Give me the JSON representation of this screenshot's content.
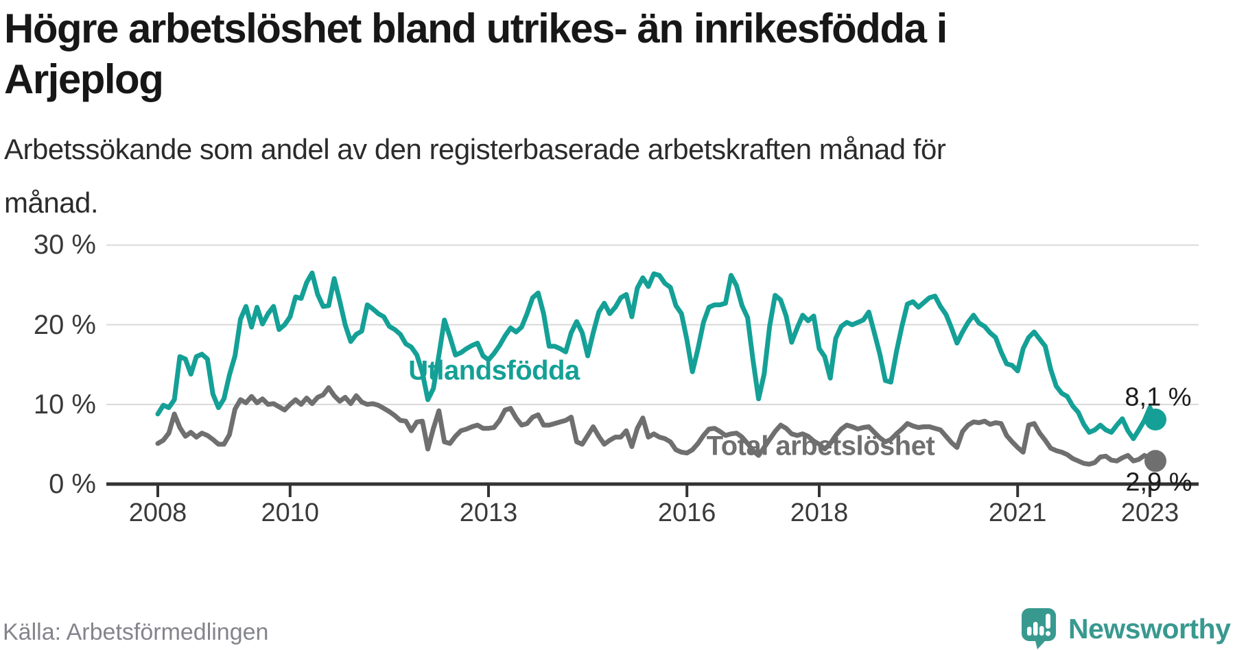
{
  "header": {
    "title": "Högre arbetslöshet bland utrikes- än inrikesfödda i Arjeplog",
    "title_lines": [
      "Högre arbetslöshet bland utrikes- än inrikesfödda i",
      "Arjeplog"
    ],
    "subtitle": "Arbetssökande som andel av den registerbaserade arbetskraften månad för månad.",
    "subtitle_lines": [
      "Arbetssökande som andel av den registerbaserade arbetskraften månad för",
      "månad."
    ]
  },
  "footer": {
    "source": "Källa: Arbetsförmedlingen",
    "brand_name": "Newsworthy",
    "brand_color": "#38998f"
  },
  "colors": {
    "teal_series": "#14a096",
    "gray_series": "#6f6f6f",
    "gridline": "#d9d9d9",
    "axis": "#333333",
    "tick_text": "#3a3a3a"
  },
  "chart_data": {
    "type": "line",
    "title": "Högre arbetslöshet bland utrikes- än inrikesfödda i Arjeplog",
    "subtitle": "Arbetssökande som andel av den registerbaserade arbetskraften månad för månad.",
    "xlabel": "",
    "ylabel": "",
    "ylim": [
      0,
      30
    ],
    "grid": "horizontal",
    "frequency": "monthly",
    "start": "2008-01",
    "end": "2023-02",
    "y_ticks": [
      {
        "label": "30 %",
        "value": 30
      },
      {
        "label": "20 %",
        "value": 20
      },
      {
        "label": "10 %",
        "value": 10
      },
      {
        "label": "0 %",
        "value": 0
      }
    ],
    "x_ticks": [
      {
        "label": "2008",
        "year": 2008
      },
      {
        "label": "2010",
        "year": 2010
      },
      {
        "label": "2013",
        "year": 2013
      },
      {
        "label": "2016",
        "year": 2016
      },
      {
        "label": "2018",
        "year": 2018
      },
      {
        "label": "2021",
        "year": 2021
      },
      {
        "label": "2023",
        "year": 2023
      }
    ],
    "series": [
      {
        "name": "Utlandsfödda",
        "color": "#14a096",
        "end_label": "8,1 %",
        "end_value": 8.1,
        "values": [
          8.8,
          9.9,
          9.6,
          10.6,
          16.0,
          15.7,
          13.8,
          16.0,
          16.3,
          15.7,
          11.3,
          9.6,
          10.7,
          13.7,
          16.1,
          20.7,
          22.3,
          19.7,
          22.2,
          20.1,
          21.4,
          22.3,
          19.4,
          20.0,
          21.0,
          23.5,
          23.3,
          25.3,
          26.5,
          23.8,
          22.3,
          22.4,
          25.8,
          23.0,
          20.0,
          17.9,
          18.8,
          19.2,
          22.5,
          22.0,
          21.4,
          21.0,
          19.8,
          19.4,
          18.8,
          17.6,
          17.2,
          16.2,
          14.0,
          10.6,
          12.0,
          16.2,
          20.6,
          18.5,
          16.2,
          16.5,
          17.0,
          17.4,
          17.7,
          16.1,
          15.6,
          16.4,
          17.4,
          18.6,
          19.6,
          19.1,
          19.7,
          21.4,
          23.4,
          24.0,
          21.4,
          17.3,
          17.3,
          17.0,
          16.6,
          19.0,
          20.4,
          19.0,
          16.1,
          19.0,
          21.6,
          22.7,
          21.4,
          22.2,
          23.4,
          23.8,
          21.0,
          24.6,
          25.9,
          24.8,
          26.4,
          26.2,
          25.2,
          24.7,
          22.4,
          21.4,
          18.1,
          14.1,
          17.0,
          20.3,
          22.2,
          22.5,
          22.5,
          22.7,
          26.2,
          24.9,
          22.4,
          20.9,
          15.5,
          10.7,
          13.8,
          19.8,
          23.7,
          23.1,
          21.1,
          17.8,
          19.6,
          21.2,
          20.5,
          21.1,
          17.0,
          16.0,
          13.3,
          18.3,
          19.8,
          20.3,
          20.0,
          20.3,
          20.6,
          21.6,
          19.0,
          16.3,
          13.0,
          12.8,
          16.6,
          19.8,
          22.6,
          22.9,
          22.2,
          22.8,
          23.4,
          23.6,
          22.3,
          21.3,
          19.6,
          17.7,
          19.1,
          20.3,
          21.2,
          20.2,
          19.8,
          19.0,
          18.4,
          16.6,
          15.1,
          14.9,
          14.2,
          17.0,
          18.4,
          19.1,
          18.2,
          17.3,
          14.4,
          12.3,
          11.4,
          11.0,
          9.8,
          9.0,
          7.5,
          6.5,
          6.8,
          7.4,
          6.8,
          6.5,
          7.4,
          8.2,
          6.7,
          5.7,
          6.8,
          8.0,
          9.6,
          8.1
        ]
      },
      {
        "name": "Total arbetslöshet",
        "color": "#6f6f6f",
        "end_label": "2,9 %",
        "end_value": 2.9,
        "values": [
          5.1,
          5.5,
          6.4,
          8.8,
          7.1,
          6.0,
          6.5,
          5.9,
          6.4,
          6.1,
          5.6,
          5.0,
          5.0,
          6.2,
          9.4,
          10.6,
          10.2,
          11.0,
          10.2,
          10.7,
          10.0,
          10.1,
          9.7,
          9.3,
          10.0,
          10.6,
          10.0,
          10.8,
          10.1,
          10.9,
          11.2,
          12.1,
          11.1,
          10.4,
          10.9,
          10.1,
          11.1,
          10.3,
          10.0,
          10.1,
          9.9,
          9.5,
          9.1,
          8.6,
          8.0,
          7.9,
          6.7,
          7.8,
          7.9,
          4.4,
          7.0,
          9.2,
          5.3,
          5.1,
          6.0,
          6.7,
          6.9,
          7.2,
          7.4,
          7.0,
          7.0,
          7.1,
          8.0,
          9.3,
          9.5,
          8.3,
          7.4,
          7.6,
          8.4,
          8.7,
          7.4,
          7.4,
          7.6,
          7.8,
          8.0,
          8.4,
          5.3,
          5.0,
          6.1,
          7.2,
          6.0,
          5.0,
          5.5,
          5.9,
          5.9,
          6.7,
          4.7,
          7.0,
          8.3,
          5.9,
          6.3,
          5.9,
          5.7,
          5.3,
          4.3,
          4.0,
          3.9,
          4.3,
          5.1,
          6.1,
          6.9,
          7.0,
          6.6,
          6.1,
          6.3,
          6.4,
          5.9,
          5.1,
          4.2,
          3.6,
          4.6,
          5.6,
          6.6,
          7.4,
          7.0,
          6.3,
          6.1,
          6.3,
          6.0,
          5.4,
          5.0,
          4.4,
          5.1,
          6.1,
          6.9,
          7.4,
          7.2,
          6.9,
          7.1,
          7.2,
          6.5,
          5.8,
          5.3,
          5.6,
          6.3,
          6.9,
          7.6,
          7.3,
          7.1,
          7.2,
          7.2,
          7.0,
          6.8,
          6.0,
          5.2,
          4.6,
          6.6,
          7.4,
          7.8,
          7.7,
          7.9,
          7.5,
          7.7,
          7.6,
          6.1,
          5.3,
          4.6,
          4.0,
          7.4,
          7.6,
          6.4,
          5.5,
          4.5,
          4.2,
          4.0,
          3.7,
          3.2,
          2.9,
          2.6,
          2.5,
          2.7,
          3.4,
          3.5,
          3.0,
          2.9,
          3.3,
          3.6,
          2.9,
          3.1,
          3.6,
          3.3,
          2.9
        ]
      }
    ],
    "annotations": [
      {
        "text": "Utlandsfödda",
        "color": "#14a096"
      },
      {
        "text": "Total arbetslöshet",
        "color": "#6f6f6f"
      },
      {
        "text": "8,1 %"
      },
      {
        "text": "2,9 %"
      }
    ]
  }
}
